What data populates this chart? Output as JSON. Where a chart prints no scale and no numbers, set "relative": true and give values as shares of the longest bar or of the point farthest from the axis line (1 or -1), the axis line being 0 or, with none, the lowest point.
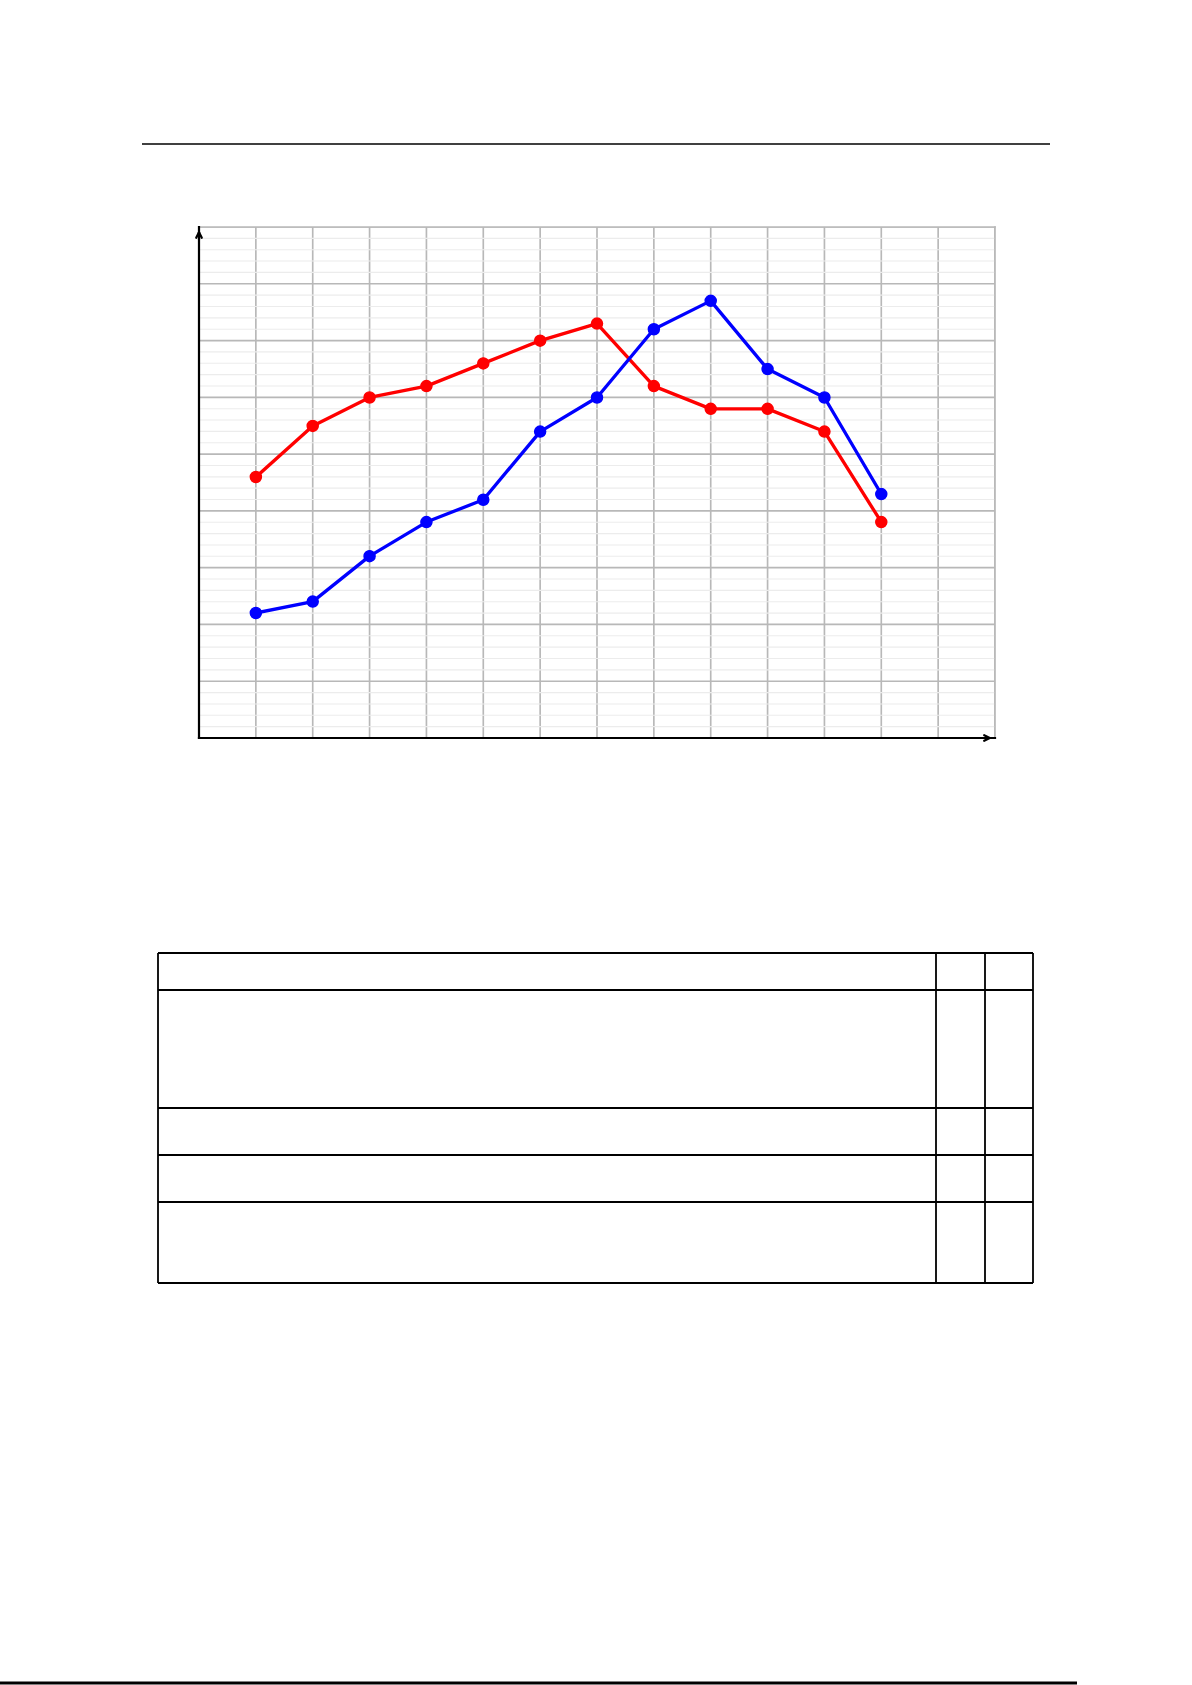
{
  "chart_data": {
    "type": "line",
    "relative": true,
    "grid": true,
    "marker": "circle",
    "categories": [
      null,
      null,
      null,
      null,
      null,
      null,
      null,
      null,
      null,
      null,
      null,
      null
    ],
    "series": [
      {
        "color": "#ff0000",
        "values": [
          0.597,
          0.714,
          0.779,
          0.805,
          0.857,
          0.909,
          0.948,
          0.805,
          0.753,
          0.753,
          0.701,
          0.494
        ]
      },
      {
        "color": "#0000ff",
        "values": [
          0.286,
          0.312,
          0.416,
          0.494,
          0.545,
          0.701,
          0.779,
          0.935,
          1,
          0.844,
          0.779,
          0.558
        ]
      }
    ]
  }
}
